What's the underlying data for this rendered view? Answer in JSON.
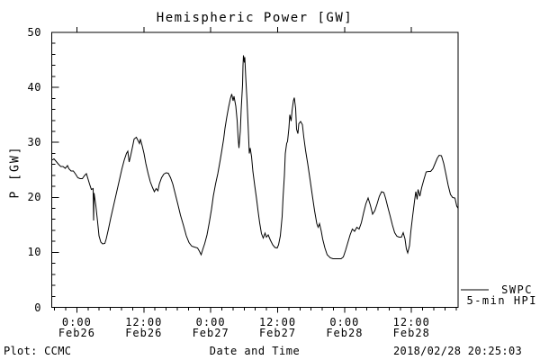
{
  "title": "Hemispheric Power [GW]",
  "footer": {
    "plot_credit": "Plot: CCMC",
    "timestamp": "2018/02/28 20:25:03"
  },
  "colors": {
    "background": "#ffffff",
    "foreground": "#000000"
  },
  "chart_data": {
    "type": "line",
    "title": "Hemispheric Power [GW]",
    "xlabel": "Date and Time",
    "ylabel": "P [GW]",
    "ylim": [
      0,
      50
    ],
    "xlim": [
      -4.5,
      68.35
    ],
    "x_unit": "hours since 2018-02-26 00:00",
    "grid": false,
    "legend_position": "outside-right",
    "legend": {
      "source": "SWPC",
      "label": "5-min HPI"
    },
    "y_major_ticks": [
      0,
      10,
      20,
      30,
      40,
      50
    ],
    "y_minor_step": 2,
    "x_major_ticks": [
      {
        "t": 0,
        "time": "0:00",
        "date": "Feb26"
      },
      {
        "t": 12,
        "time": "12:00",
        "date": "Feb26"
      },
      {
        "t": 24,
        "time": "0:00",
        "date": "Feb27"
      },
      {
        "t": 36,
        "time": "12:00",
        "date": "Feb27"
      },
      {
        "t": 48,
        "time": "0:00",
        "date": "Feb28"
      },
      {
        "t": 60,
        "time": "12:00",
        "date": "Feb28"
      }
    ],
    "x_minor_step": 2,
    "series": [
      {
        "name": "SWPC 5-min HPI",
        "color": "#000000",
        "points": [
          [
            -4.5,
            26.8
          ],
          [
            -4.1,
            27.0
          ],
          [
            -3.7,
            26.5
          ],
          [
            -3.3,
            26.0
          ],
          [
            -2.9,
            25.6
          ],
          [
            -2.5,
            25.6
          ],
          [
            -2.1,
            25.3
          ],
          [
            -1.7,
            25.8
          ],
          [
            -1.4,
            25.2
          ],
          [
            -1.0,
            24.8
          ],
          [
            -0.6,
            24.8
          ],
          [
            -0.2,
            24.2
          ],
          [
            0.2,
            23.6
          ],
          [
            0.6,
            23.4
          ],
          [
            1.0,
            23.4
          ],
          [
            1.4,
            24.0
          ],
          [
            1.7,
            24.3
          ],
          [
            2.0,
            23.2
          ],
          [
            2.3,
            22.4
          ],
          [
            2.6,
            21.4
          ],
          [
            2.9,
            21.6
          ],
          [
            3.0,
            15.8
          ],
          [
            3.1,
            20.8
          ],
          [
            3.4,
            18.5
          ],
          [
            3.7,
            15.5
          ],
          [
            4.0,
            13.0
          ],
          [
            4.3,
            11.9
          ],
          [
            4.6,
            11.5
          ],
          [
            5.0,
            11.6
          ],
          [
            5.3,
            12.4
          ],
          [
            5.7,
            14.2
          ],
          [
            6.1,
            16.2
          ],
          [
            6.5,
            18.0
          ],
          [
            6.9,
            19.8
          ],
          [
            7.3,
            21.6
          ],
          [
            7.7,
            23.4
          ],
          [
            8.1,
            25.2
          ],
          [
            8.5,
            26.8
          ],
          [
            8.9,
            28.0
          ],
          [
            9.1,
            28.4
          ],
          [
            9.4,
            26.4
          ],
          [
            9.7,
            27.8
          ],
          [
            10.0,
            29.4
          ],
          [
            10.3,
            30.6
          ],
          [
            10.7,
            30.9
          ],
          [
            11.0,
            30.3
          ],
          [
            11.2,
            29.8
          ],
          [
            11.4,
            30.6
          ],
          [
            11.7,
            29.4
          ],
          [
            12.0,
            28.0
          ],
          [
            12.4,
            26.2
          ],
          [
            12.8,
            24.4
          ],
          [
            13.2,
            22.8
          ],
          [
            13.6,
            21.8
          ],
          [
            13.9,
            21.0
          ],
          [
            14.2,
            21.6
          ],
          [
            14.5,
            21.2
          ],
          [
            14.8,
            22.4
          ],
          [
            15.2,
            23.6
          ],
          [
            15.6,
            24.2
          ],
          [
            16.0,
            24.5
          ],
          [
            16.4,
            24.4
          ],
          [
            16.8,
            23.6
          ],
          [
            17.2,
            22.4
          ],
          [
            17.6,
            20.8
          ],
          [
            18.1,
            18.8
          ],
          [
            18.6,
            16.8
          ],
          [
            19.1,
            14.8
          ],
          [
            19.6,
            13.0
          ],
          [
            20.1,
            11.8
          ],
          [
            20.6,
            11.1
          ],
          [
            21.1,
            11.0
          ],
          [
            21.6,
            10.8
          ],
          [
            22.0,
            10.2
          ],
          [
            22.3,
            9.6
          ],
          [
            22.6,
            10.6
          ],
          [
            22.9,
            11.6
          ],
          [
            23.3,
            13.2
          ],
          [
            23.7,
            15.4
          ],
          [
            24.1,
            17.8
          ],
          [
            24.5,
            20.2
          ],
          [
            24.9,
            22.4
          ],
          [
            25.3,
            24.3
          ],
          [
            25.7,
            26.6
          ],
          [
            26.0,
            28.6
          ],
          [
            26.3,
            30.6
          ],
          [
            26.6,
            32.6
          ],
          [
            26.9,
            34.6
          ],
          [
            27.2,
            36.4
          ],
          [
            27.5,
            38.0
          ],
          [
            27.8,
            38.8
          ],
          [
            28.0,
            37.6
          ],
          [
            28.2,
            38.4
          ],
          [
            28.5,
            36.6
          ],
          [
            28.7,
            34.0
          ],
          [
            28.9,
            31.0
          ],
          [
            29.1,
            29.0
          ],
          [
            29.3,
            32.0
          ],
          [
            29.5,
            36.0
          ],
          [
            29.7,
            40.5
          ],
          [
            29.8,
            44.0
          ],
          [
            29.9,
            45.8
          ],
          [
            30.0,
            44.5
          ],
          [
            30.1,
            45.5
          ],
          [
            30.3,
            42.0
          ],
          [
            30.5,
            37.5
          ],
          [
            30.7,
            33.8
          ],
          [
            30.9,
            28.0
          ],
          [
            31.1,
            29.0
          ],
          [
            31.3,
            27.4
          ],
          [
            31.6,
            24.7
          ],
          [
            31.9,
            22.2
          ],
          [
            32.2,
            19.8
          ],
          [
            32.5,
            17.2
          ],
          [
            32.8,
            15.4
          ],
          [
            33.1,
            13.4
          ],
          [
            33.4,
            12.6
          ],
          [
            33.7,
            13.5
          ],
          [
            34.0,
            12.8
          ],
          [
            34.3,
            13.2
          ],
          [
            34.7,
            12.2
          ],
          [
            35.1,
            11.4
          ],
          [
            35.5,
            10.9
          ],
          [
            35.9,
            10.8
          ],
          [
            36.2,
            11.4
          ],
          [
            36.5,
            13.0
          ],
          [
            36.8,
            16.5
          ],
          [
            37.0,
            20.0
          ],
          [
            37.2,
            24.0
          ],
          [
            37.4,
            28.0
          ],
          [
            37.6,
            29.8
          ],
          [
            37.8,
            30.2
          ],
          [
            38.0,
            32.6
          ],
          [
            38.2,
            35.0
          ],
          [
            38.4,
            33.9
          ],
          [
            38.6,
            35.8
          ],
          [
            38.8,
            37.6
          ],
          [
            39.0,
            38.1
          ],
          [
            39.2,
            36.2
          ],
          [
            39.4,
            32.4
          ],
          [
            39.6,
            31.6
          ],
          [
            39.8,
            33.4
          ],
          [
            40.1,
            33.8
          ],
          [
            40.4,
            33.2
          ],
          [
            40.7,
            31.0
          ],
          [
            41.0,
            28.6
          ],
          [
            41.4,
            26.0
          ],
          [
            41.8,
            23.2
          ],
          [
            42.2,
            20.4
          ],
          [
            42.6,
            17.6
          ],
          [
            43.0,
            15.2
          ],
          [
            43.3,
            14.6
          ],
          [
            43.5,
            15.2
          ],
          [
            43.8,
            13.8
          ],
          [
            44.1,
            12.4
          ],
          [
            44.5,
            10.8
          ],
          [
            44.9,
            9.6
          ],
          [
            45.4,
            9.0
          ],
          [
            45.9,
            8.8
          ],
          [
            46.4,
            8.8
          ],
          [
            46.9,
            8.8
          ],
          [
            47.4,
            8.8
          ],
          [
            47.8,
            9.2
          ],
          [
            48.2,
            10.4
          ],
          [
            48.6,
            11.8
          ],
          [
            49.0,
            13.2
          ],
          [
            49.4,
            14.2
          ],
          [
            49.8,
            13.8
          ],
          [
            50.2,
            14.6
          ],
          [
            50.6,
            14.2
          ],
          [
            51.0,
            15.4
          ],
          [
            51.4,
            17.2
          ],
          [
            51.8,
            18.8
          ],
          [
            52.2,
            19.9
          ],
          [
            52.6,
            18.6
          ],
          [
            53.0,
            16.9
          ],
          [
            53.4,
            17.6
          ],
          [
            53.8,
            18.8
          ],
          [
            54.2,
            20.2
          ],
          [
            54.6,
            21.0
          ],
          [
            55.0,
            20.9
          ],
          [
            55.4,
            19.8
          ],
          [
            55.8,
            18.2
          ],
          [
            56.2,
            16.6
          ],
          [
            56.6,
            15.0
          ],
          [
            57.0,
            13.6
          ],
          [
            57.4,
            12.9
          ],
          [
            57.8,
            12.8
          ],
          [
            58.2,
            12.8
          ],
          [
            58.5,
            13.6
          ],
          [
            58.8,
            12.4
          ],
          [
            59.1,
            10.6
          ],
          [
            59.3,
            9.9
          ],
          [
            59.6,
            11.2
          ],
          [
            59.9,
            13.8
          ],
          [
            60.2,
            16.6
          ],
          [
            60.5,
            19.2
          ],
          [
            60.8,
            21.0
          ],
          [
            61.0,
            19.6
          ],
          [
            61.2,
            21.4
          ],
          [
            61.5,
            20.2
          ],
          [
            61.8,
            21.8
          ],
          [
            62.2,
            23.2
          ],
          [
            62.6,
            24.6
          ],
          [
            63.0,
            24.7
          ],
          [
            63.4,
            24.7
          ],
          [
            63.8,
            25.2
          ],
          [
            64.2,
            26.2
          ],
          [
            64.6,
            27.2
          ],
          [
            65.0,
            27.7
          ],
          [
            65.4,
            27.6
          ],
          [
            65.8,
            26.2
          ],
          [
            66.2,
            24.2
          ],
          [
            66.6,
            22.2
          ],
          [
            67.0,
            20.5
          ],
          [
            67.4,
            20.0
          ],
          [
            67.8,
            19.9
          ],
          [
            68.1,
            18.4
          ],
          [
            68.35,
            18.0
          ]
        ]
      }
    ]
  }
}
